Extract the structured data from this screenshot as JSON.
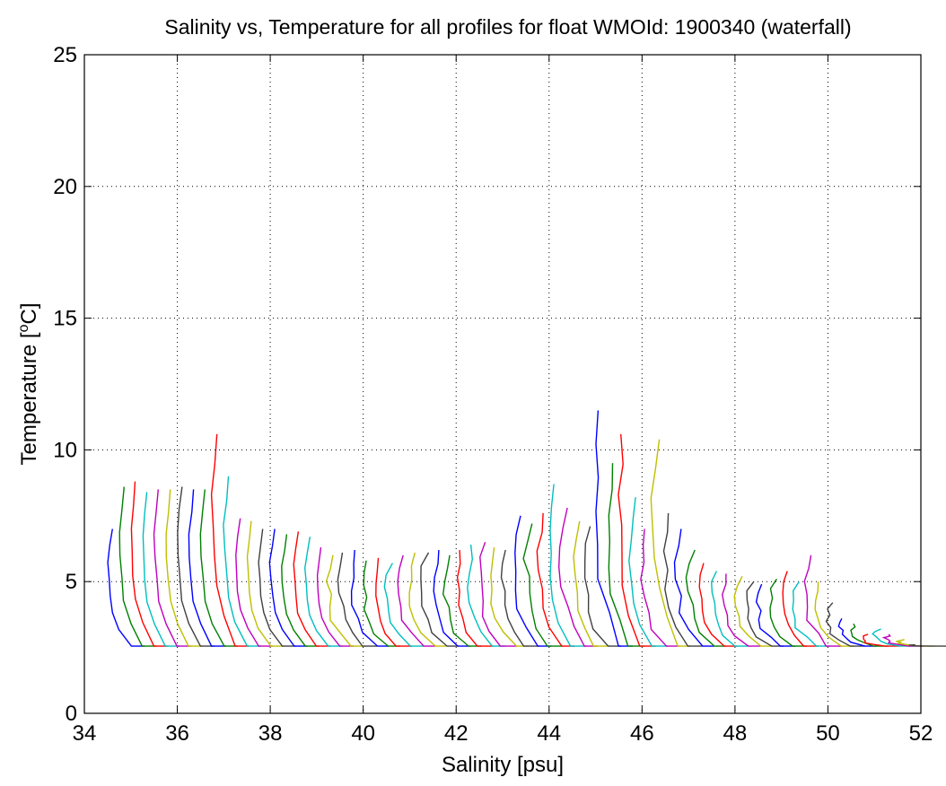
{
  "chart_data": {
    "type": "line",
    "title": "Salinity vs, Temperature for all profiles for float WMOId: 1900340 (waterfall)",
    "xlabel": "Salinity [psu]",
    "ylabel": {
      "main": "Temperature [",
      "sup": "o",
      "unit": "C]"
    },
    "xlim": [
      34,
      52
    ],
    "ylim": [
      0,
      25
    ],
    "xticks": [
      34,
      36,
      38,
      40,
      42,
      44,
      46,
      48,
      50,
      52
    ],
    "yticks": [
      0,
      5,
      10,
      15,
      20,
      25
    ],
    "xtick_labels": [
      "34",
      "36",
      "38",
      "40",
      "42",
      "44",
      "46",
      "48",
      "50",
      "52"
    ],
    "ytick_labels": [
      "0",
      "5",
      "10",
      "15",
      "20",
      "25"
    ],
    "grid": true,
    "grid_style": "dotted",
    "colors": [
      "#0000ff",
      "#008000",
      "#ff0000",
      "#00bfbf",
      "#bf00bf",
      "#bfbf00",
      "#404040"
    ],
    "waterfall": {
      "series_count": 70,
      "first_offset": 34.6,
      "offset_step": 0.25,
      "profile_shape": [
        [
          0.0,
          7.0
        ],
        [
          -0.05,
          6.0
        ],
        [
          -0.1,
          5.0
        ],
        [
          -0.08,
          4.0
        ],
        [
          -0.05,
          3.4
        ],
        [
          0.0,
          3.0
        ],
        [
          0.15,
          2.8
        ],
        [
          0.4,
          2.6
        ]
      ],
      "deep_temperature": 2.55,
      "surface_temperature": [
        7.0,
        8.6,
        8.8,
        8.4,
        8.5,
        8.5,
        8.6,
        8.5,
        8.5,
        10.6,
        9.0,
        7.4,
        7.3,
        7.0,
        7.0,
        6.8,
        6.9,
        6.7,
        6.3,
        6.0,
        6.1,
        6.2,
        5.8,
        5.9,
        5.7,
        6.0,
        6.1,
        6.1,
        6.2,
        6.0,
        6.2,
        6.4,
        6.5,
        6.3,
        6.2,
        7.5,
        7.2,
        7.6,
        8.7,
        7.8,
        7.3,
        7.1,
        11.5,
        9.5,
        10.6,
        8.2,
        7.0,
        10.4,
        7.6,
        7.0,
        6.2,
        5.7,
        5.4,
        5.3,
        5.2,
        5.0,
        4.9,
        5.1,
        5.4,
        5.0,
        6.0,
        5.0,
        4.2,
        3.6,
        3.4,
        3.0,
        3.2,
        3.0,
        2.8,
        2.6
      ]
    }
  }
}
